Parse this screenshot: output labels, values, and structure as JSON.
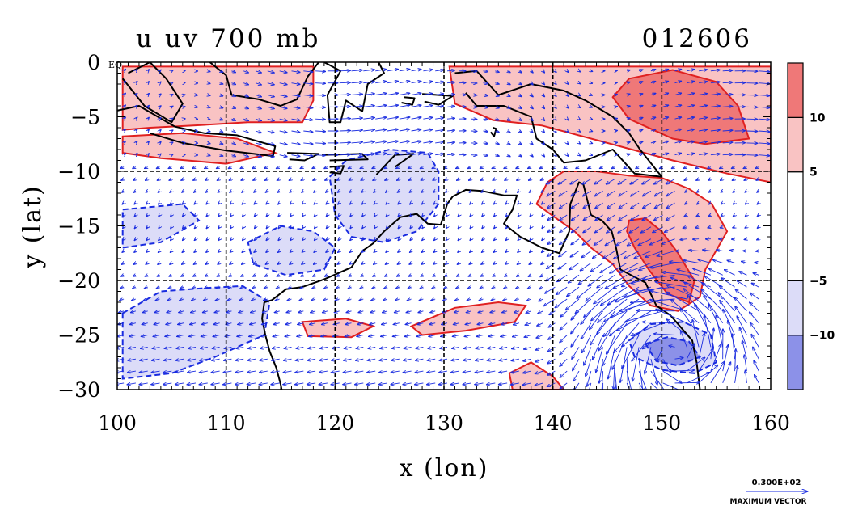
{
  "chart_data": {
    "type": "contour",
    "title": "u uv 700 mb",
    "date_label": "012606",
    "xlabel": "x (lon)",
    "ylabel": "y (lat)",
    "xlim": [
      100,
      160
    ],
    "ylim": [
      -30,
      0
    ],
    "x_ticks": [
      100,
      110,
      120,
      130,
      140,
      150,
      160
    ],
    "x_tick_labels": [
      "100",
      "110",
      "120",
      "130",
      "140",
      "150",
      "160"
    ],
    "y_ticks": [
      0,
      -5,
      -10,
      -15,
      -20,
      -25,
      -30
    ],
    "y_tick_labels": [
      "0",
      "−5",
      "−10",
      "−15",
      "−20",
      "−25",
      "−30"
    ],
    "eq_label": "EQ",
    "gridlines": {
      "x": [
        110,
        120,
        130,
        140,
        150
      ],
      "y": [
        -10,
        -20
      ],
      "style": "dashed"
    },
    "colorbar": {
      "bands": [
        {
          "from": -15,
          "to": -10,
          "color": "#8c91e8"
        },
        {
          "from": -10,
          "to": -5,
          "color": "#dcdcf8"
        },
        {
          "from": -5,
          "to": 5,
          "color": "#ffffff"
        },
        {
          "from": 5,
          "to": 10,
          "color": "#f9c3c3"
        },
        {
          "from": 10,
          "to": 15,
          "color": "#ef7878"
        }
      ],
      "labels": [
        {
          "value": 10,
          "text": "10"
        },
        {
          "value": 5,
          "text": "5"
        },
        {
          "value": -5,
          "text": "−5"
        },
        {
          "value": -10,
          "text": "−10"
        }
      ]
    },
    "positive_regions": [
      {
        "level": 5,
        "points": [
          [
            100.5,
            -0.4
          ],
          [
            118,
            -0.4
          ],
          [
            118,
            -3.5
          ],
          [
            117,
            -5.5
          ],
          [
            112,
            -5.5
          ],
          [
            107,
            -5.8
          ],
          [
            103,
            -6
          ],
          [
            100.5,
            -6.2
          ]
        ]
      },
      {
        "level": 5,
        "points": [
          [
            100.5,
            -6.8
          ],
          [
            106,
            -6.5
          ],
          [
            111,
            -7
          ],
          [
            114.5,
            -8.3
          ],
          [
            110,
            -9.3
          ],
          [
            104,
            -8.8
          ],
          [
            100.5,
            -8.3
          ]
        ]
      },
      {
        "level": 5,
        "points": [
          [
            130.5,
            -0.4
          ],
          [
            160,
            -0.4
          ],
          [
            160,
            -11
          ],
          [
            156,
            -10.2
          ],
          [
            151,
            -9
          ],
          [
            145,
            -7.4
          ],
          [
            139,
            -5.8
          ],
          [
            134.5,
            -5.3
          ],
          [
            131,
            -3.8
          ]
        ]
      },
      {
        "level": 10,
        "points": [
          [
            147,
            -1.5
          ],
          [
            151,
            -0.7
          ],
          [
            155,
            -1.8
          ],
          [
            157,
            -4
          ],
          [
            158,
            -7
          ],
          [
            154,
            -7.5
          ],
          [
            151,
            -7
          ],
          [
            147,
            -5.2
          ],
          [
            145.5,
            -3.2
          ]
        ]
      },
      {
        "level": 5,
        "points": [
          [
            138.5,
            -13
          ],
          [
            139.5,
            -11
          ],
          [
            141,
            -10
          ],
          [
            144,
            -10
          ],
          [
            147,
            -10.4
          ],
          [
            150,
            -10.6
          ],
          [
            152.5,
            -11.6
          ],
          [
            154.6,
            -13
          ],
          [
            156,
            -15.5
          ],
          [
            154,
            -19
          ],
          [
            153.5,
            -21.5
          ],
          [
            151.5,
            -22.8
          ],
          [
            149,
            -22.3
          ],
          [
            147,
            -20.5
          ],
          [
            145.5,
            -18.5
          ],
          [
            143.5,
            -17
          ],
          [
            142,
            -15.5
          ],
          [
            140.3,
            -14.3
          ]
        ]
      },
      {
        "level": 10,
        "points": [
          [
            147,
            -14.5
          ],
          [
            148.5,
            -14.3
          ],
          [
            150,
            -15.5
          ],
          [
            151.5,
            -17.5
          ],
          [
            153,
            -20
          ],
          [
            152.5,
            -22
          ],
          [
            150.5,
            -21.2
          ],
          [
            148.8,
            -19
          ],
          [
            147.5,
            -17
          ],
          [
            146.8,
            -15.5
          ]
        ]
      },
      {
        "level": 5,
        "points": [
          [
            127,
            -24.2
          ],
          [
            131,
            -22.5
          ],
          [
            135,
            -22
          ],
          [
            137.5,
            -22.3
          ],
          [
            136.5,
            -23.8
          ],
          [
            132,
            -24.6
          ],
          [
            128,
            -25
          ]
        ]
      },
      {
        "level": 5,
        "points": [
          [
            117,
            -23.8
          ],
          [
            121,
            -23.5
          ],
          [
            123.5,
            -24.2
          ],
          [
            121.5,
            -25.2
          ],
          [
            117.5,
            -25.1
          ]
        ]
      },
      {
        "level": 5,
        "points": [
          [
            136,
            -28.5
          ],
          [
            138,
            -27.5
          ],
          [
            140,
            -28.8
          ],
          [
            141,
            -30
          ],
          [
            136.3,
            -30
          ]
        ]
      }
    ],
    "negative_regions": [
      {
        "level": -5,
        "points": [
          [
            100.5,
            -13.5
          ],
          [
            106,
            -13
          ],
          [
            107.5,
            -14.5
          ],
          [
            104,
            -16.5
          ],
          [
            100.5,
            -17
          ]
        ]
      },
      {
        "level": -5,
        "points": [
          [
            100.5,
            -23
          ],
          [
            104,
            -21
          ],
          [
            108,
            -20.7
          ],
          [
            111.5,
            -20.5
          ],
          [
            114,
            -22
          ],
          [
            113.5,
            -25
          ],
          [
            109,
            -27
          ],
          [
            105,
            -28.5
          ],
          [
            100.5,
            -29
          ]
        ]
      },
      {
        "level": -5,
        "points": [
          [
            119.5,
            -10.5
          ],
          [
            121,
            -9
          ],
          [
            125,
            -8
          ],
          [
            128.5,
            -8.3
          ],
          [
            129.5,
            -10
          ],
          [
            129.5,
            -13
          ],
          [
            127.5,
            -15.5
          ],
          [
            124.5,
            -16.5
          ],
          [
            121.5,
            -16
          ],
          [
            120,
            -14
          ]
        ]
      },
      {
        "level": -5,
        "points": [
          [
            112,
            -16.5
          ],
          [
            115,
            -15
          ],
          [
            118,
            -15.5
          ],
          [
            120,
            -17
          ],
          [
            119,
            -19
          ],
          [
            115.5,
            -19.5
          ],
          [
            112.5,
            -18.5
          ]
        ]
      },
      {
        "level": -5,
        "points": [
          [
            147,
            -25.5
          ],
          [
            149,
            -24
          ],
          [
            152,
            -23.8
          ],
          [
            154.5,
            -25
          ],
          [
            155,
            -27.5
          ],
          [
            153,
            -28.5
          ],
          [
            150,
            -28.2
          ],
          [
            147.5,
            -27
          ]
        ]
      },
      {
        "level": -10,
        "points": [
          [
            148.5,
            -25.8
          ],
          [
            150.5,
            -25.2
          ],
          [
            152.5,
            -25.6
          ],
          [
            153.5,
            -27
          ],
          [
            151.5,
            -27.8
          ],
          [
            149.5,
            -27.4
          ]
        ]
      }
    ],
    "coastlines": [
      [
        [
          113.5,
          -22
        ],
        [
          114.2,
          -21.8
        ],
        [
          115.5,
          -20.8
        ],
        [
          117,
          -20.6
        ],
        [
          119,
          -19.9
        ],
        [
          121.5,
          -18.8
        ],
        [
          122.5,
          -17.3
        ],
        [
          123.5,
          -16.6
        ],
        [
          124.5,
          -15.5
        ],
        [
          126,
          -14.2
        ],
        [
          127.5,
          -13.9
        ],
        [
          128.5,
          -14.8
        ],
        [
          129.7,
          -14.9
        ],
        [
          130.3,
          -13
        ],
        [
          130.8,
          -12.3
        ],
        [
          132,
          -11.7
        ],
        [
          133.5,
          -11.8
        ],
        [
          135.5,
          -12.2
        ],
        [
          136.7,
          -12.2
        ],
        [
          136.3,
          -13.5
        ],
        [
          135.5,
          -14.8
        ],
        [
          137,
          -16
        ],
        [
          139,
          -17
        ],
        [
          140.6,
          -17.5
        ],
        [
          141.5,
          -15.5
        ],
        [
          141.6,
          -13
        ],
        [
          142.4,
          -11
        ],
        [
          142.8,
          -11.2
        ],
        [
          143.5,
          -14
        ],
        [
          144.5,
          -14.5
        ],
        [
          145.4,
          -15.5
        ],
        [
          145.8,
          -17
        ],
        [
          146.2,
          -19
        ],
        [
          148.5,
          -20.2
        ],
        [
          149.5,
          -22.3
        ],
        [
          150.8,
          -23.2
        ],
        [
          152.8,
          -25.5
        ],
        [
          153.2,
          -27.5
        ],
        [
          153.5,
          -30
        ]
      ],
      [
        [
          113.5,
          -22
        ],
        [
          113.3,
          -23.5
        ],
        [
          113.6,
          -25
        ],
        [
          114,
          -26.5
        ],
        [
          114.6,
          -28
        ],
        [
          115,
          -29.5
        ],
        [
          115.1,
          -30
        ]
      ],
      [
        [
          131,
          -1
        ],
        [
          133,
          -0.8
        ],
        [
          135,
          -3
        ],
        [
          138,
          -2
        ],
        [
          141,
          -2.6
        ],
        [
          143,
          -3.5
        ],
        [
          145.5,
          -5
        ],
        [
          147,
          -6.5
        ],
        [
          148,
          -8
        ],
        [
          150,
          -10.5
        ],
        [
          147.5,
          -10.2
        ],
        [
          145.5,
          -8
        ],
        [
          143,
          -9
        ],
        [
          141,
          -9.2
        ],
        [
          140,
          -8
        ],
        [
          138.5,
          -7
        ],
        [
          138,
          -5
        ],
        [
          135.5,
          -4
        ],
        [
          133,
          -4
        ],
        [
          132,
          -2.8
        ]
      ],
      [
        [
          95,
          -5.5
        ],
        [
          102,
          -4
        ],
        [
          105.3,
          -5.9
        ],
        [
          108,
          -6.5
        ],
        [
          111,
          -6.7
        ],
        [
          114.5,
          -7.7
        ],
        [
          114.3,
          -8.6
        ],
        [
          110,
          -8.1
        ],
        [
          106,
          -7.4
        ],
        [
          103,
          -6.5
        ]
      ],
      [
        [
          101,
          -1
        ],
        [
          103,
          0
        ],
        [
          104.5,
          -1.5
        ],
        [
          106,
          -3.8
        ],
        [
          105,
          -5.5
        ],
        [
          102.5,
          -4
        ],
        [
          100.5,
          -1.5
        ]
      ],
      [
        [
          108.5,
          0
        ],
        [
          110,
          -1.2
        ],
        [
          110.5,
          -3
        ],
        [
          113,
          -3.4
        ],
        [
          115,
          -4
        ],
        [
          116.5,
          -3.4
        ],
        [
          117.5,
          -1.3
        ],
        [
          118.5,
          0
        ]
      ],
      [
        [
          119,
          0
        ],
        [
          120.5,
          -0.8
        ],
        [
          119.3,
          -3
        ],
        [
          119.5,
          -5.5
        ],
        [
          120.5,
          -5.5
        ],
        [
          121,
          -3.5
        ],
        [
          122.5,
          -4.5
        ],
        [
          123,
          -2
        ],
        [
          124.5,
          -1
        ],
        [
          124,
          0
        ]
      ],
      [
        [
          126.3,
          -3.2
        ],
        [
          127.3,
          -3.3
        ],
        [
          127.1,
          -3.9
        ],
        [
          126.1,
          -3.7
        ]
      ],
      [
        [
          128,
          -2.9
        ],
        [
          130.8,
          -3.1
        ],
        [
          129.5,
          -3.9
        ],
        [
          128.2,
          -3.6
        ]
      ],
      [
        [
          115.6,
          -8.3
        ],
        [
          118.5,
          -8.4
        ],
        [
          117.2,
          -9
        ],
        [
          115.8,
          -8.9
        ]
      ],
      [
        [
          118.8,
          -8.5
        ],
        [
          122.5,
          -8.4
        ],
        [
          123,
          -8.9
        ],
        [
          119.5,
          -9
        ]
      ],
      [
        [
          119.5,
          -9.6
        ],
        [
          120.8,
          -9.5
        ],
        [
          120.5,
          -10.2
        ],
        [
          119.5,
          -10.1
        ]
      ],
      [
        [
          123.8,
          -10.3
        ],
        [
          125.5,
          -8.5
        ],
        [
          127.2,
          -8.4
        ],
        [
          125.5,
          -9.6
        ]
      ],
      [
        [
          134.5,
          -6
        ],
        [
          134.8,
          -6.1
        ],
        [
          134.6,
          -6.8
        ],
        [
          134.3,
          -6.4
        ]
      ]
    ],
    "max_vector": {
      "value_label": "0.300E+02",
      "label": "MAXIMUM VECTOR"
    }
  }
}
